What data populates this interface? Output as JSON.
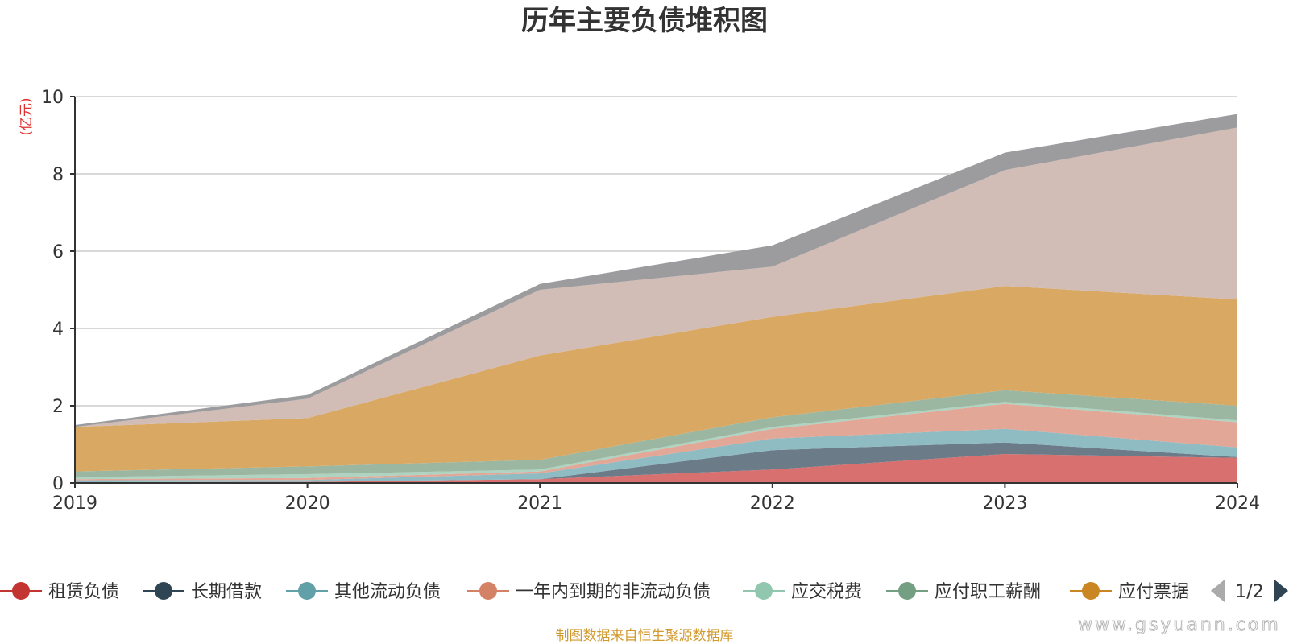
{
  "chart_data": {
    "type": "area",
    "stacked": true,
    "title": "历年主要负债堆积图",
    "unit_label": "(亿元)",
    "x": [
      "2019",
      "2020",
      "2021",
      "2022",
      "2023",
      "2024"
    ],
    "ylim": [
      0,
      10
    ],
    "yticks": [
      "0",
      "2",
      "4",
      "6",
      "8",
      "10"
    ],
    "grid": true,
    "legend_position": "bottom",
    "series": [
      {
        "name": "租赁负债",
        "color": "#c23531",
        "fill": "#d7706f",
        "values": [
          0.02,
          0.03,
          0.1,
          0.35,
          0.75,
          0.65
        ],
        "in_legend": true
      },
      {
        "name": "长期借款",
        "color": "#2f4554",
        "fill": "#6b7b88",
        "values": [
          0.0,
          0.0,
          0.0,
          0.5,
          0.3,
          0.02
        ],
        "in_legend": true
      },
      {
        "name": "其他流动负债",
        "color": "#61a0a8",
        "fill": "#8fbbc2",
        "values": [
          0.05,
          0.05,
          0.15,
          0.3,
          0.35,
          0.25
        ],
        "in_legend": true
      },
      {
        "name": "一年内到期的非流动负债",
        "color": "#d48265",
        "fill": "#e2a797",
        "values": [
          0.03,
          0.05,
          0.05,
          0.25,
          0.65,
          0.65
        ],
        "in_legend": true
      },
      {
        "name": "应交税费",
        "color": "#91c7ae",
        "fill": "#aed3c1",
        "values": [
          0.05,
          0.1,
          0.05,
          0.05,
          0.05,
          0.05
        ],
        "in_legend": true
      },
      {
        "name": "应付职工薪酬",
        "color": "#749f83",
        "fill": "#9bb7a2",
        "values": [
          0.15,
          0.2,
          0.25,
          0.25,
          0.3,
          0.38
        ],
        "in_legend": true
      },
      {
        "name": "应付票据",
        "color": "#ca8622",
        "fill": "#d9a964",
        "values": [
          1.15,
          1.25,
          2.7,
          2.6,
          2.7,
          2.75
        ],
        "in_legend": true
      },
      {
        "name": "",
        "color": "#bda29a",
        "fill": "#d1bcb6",
        "values": [
          0.0,
          0.5,
          1.7,
          1.3,
          3.0,
          4.45
        ],
        "in_legend": false
      },
      {
        "name": "",
        "color": "#6e7074",
        "fill": "#9c9c9e",
        "values": [
          0.05,
          0.1,
          0.15,
          0.55,
          0.45,
          0.35
        ],
        "in_legend": false
      }
    ]
  },
  "legend_pager": {
    "text": "1/2",
    "prev_icon": "triangle-left",
    "next_icon": "triangle-right"
  },
  "source_note": "制图数据来自恒生聚源数据库",
  "watermark": "www.gsyuann.com"
}
